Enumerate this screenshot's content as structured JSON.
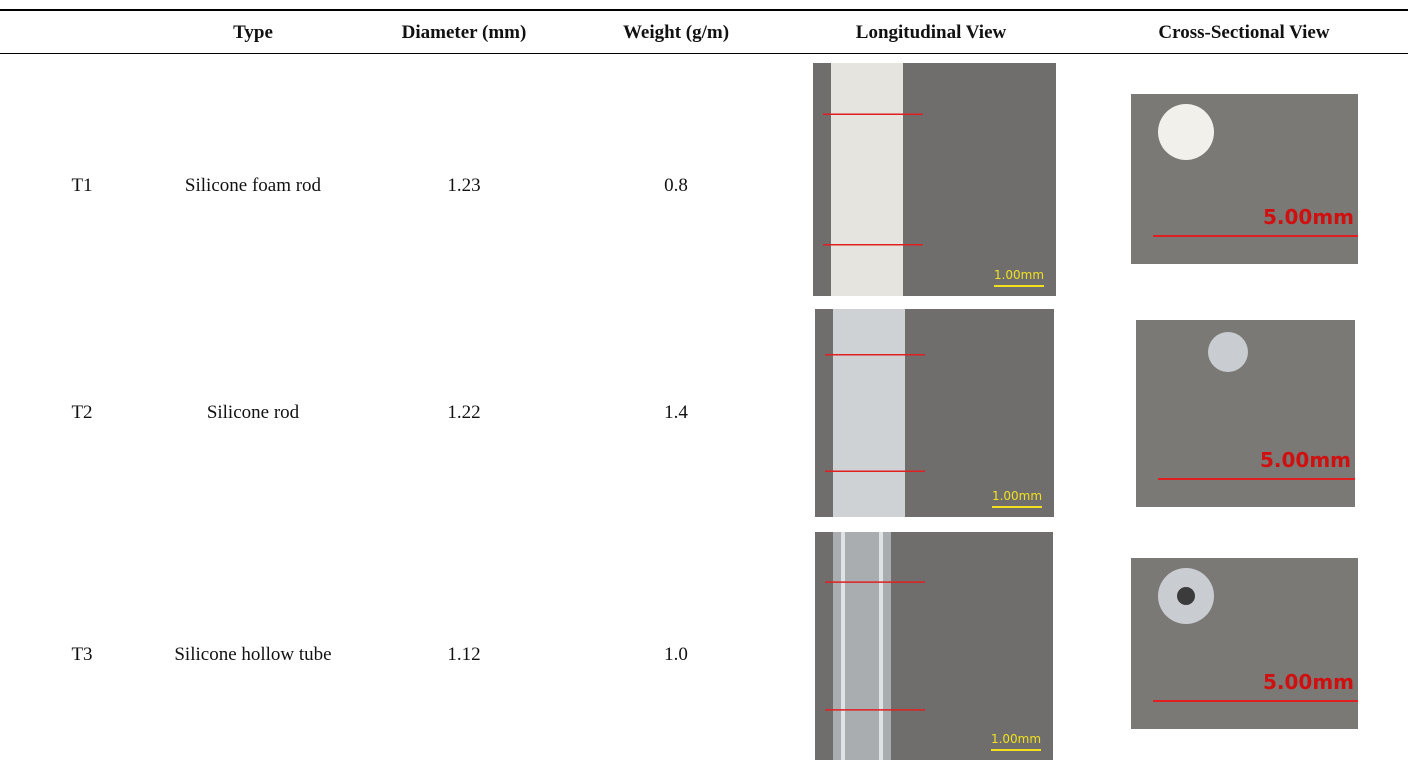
{
  "table": {
    "header": [
      "Type",
      "Diameter (mm)",
      "Weight (g/m)",
      "Longitudinal View",
      "Cross-Sectional View"
    ],
    "rows": [
      {
        "id": "T1",
        "type": "Silicone foam rod",
        "diameter": "1.23",
        "weight": "0.8",
        "long_scale": "1.00mm",
        "cross_scale": "5.00mm"
      },
      {
        "id": "T2",
        "type": "Silicone rod",
        "diameter": "1.22",
        "weight": "1.4",
        "long_scale": "1.00mm",
        "cross_scale": "5.00mm"
      },
      {
        "id": "T3",
        "type": "Silicone hollow tube",
        "diameter": "1.12",
        "weight": "1.0",
        "long_scale": "1.00mm",
        "cross_scale": "5.00mm"
      }
    ]
  }
}
